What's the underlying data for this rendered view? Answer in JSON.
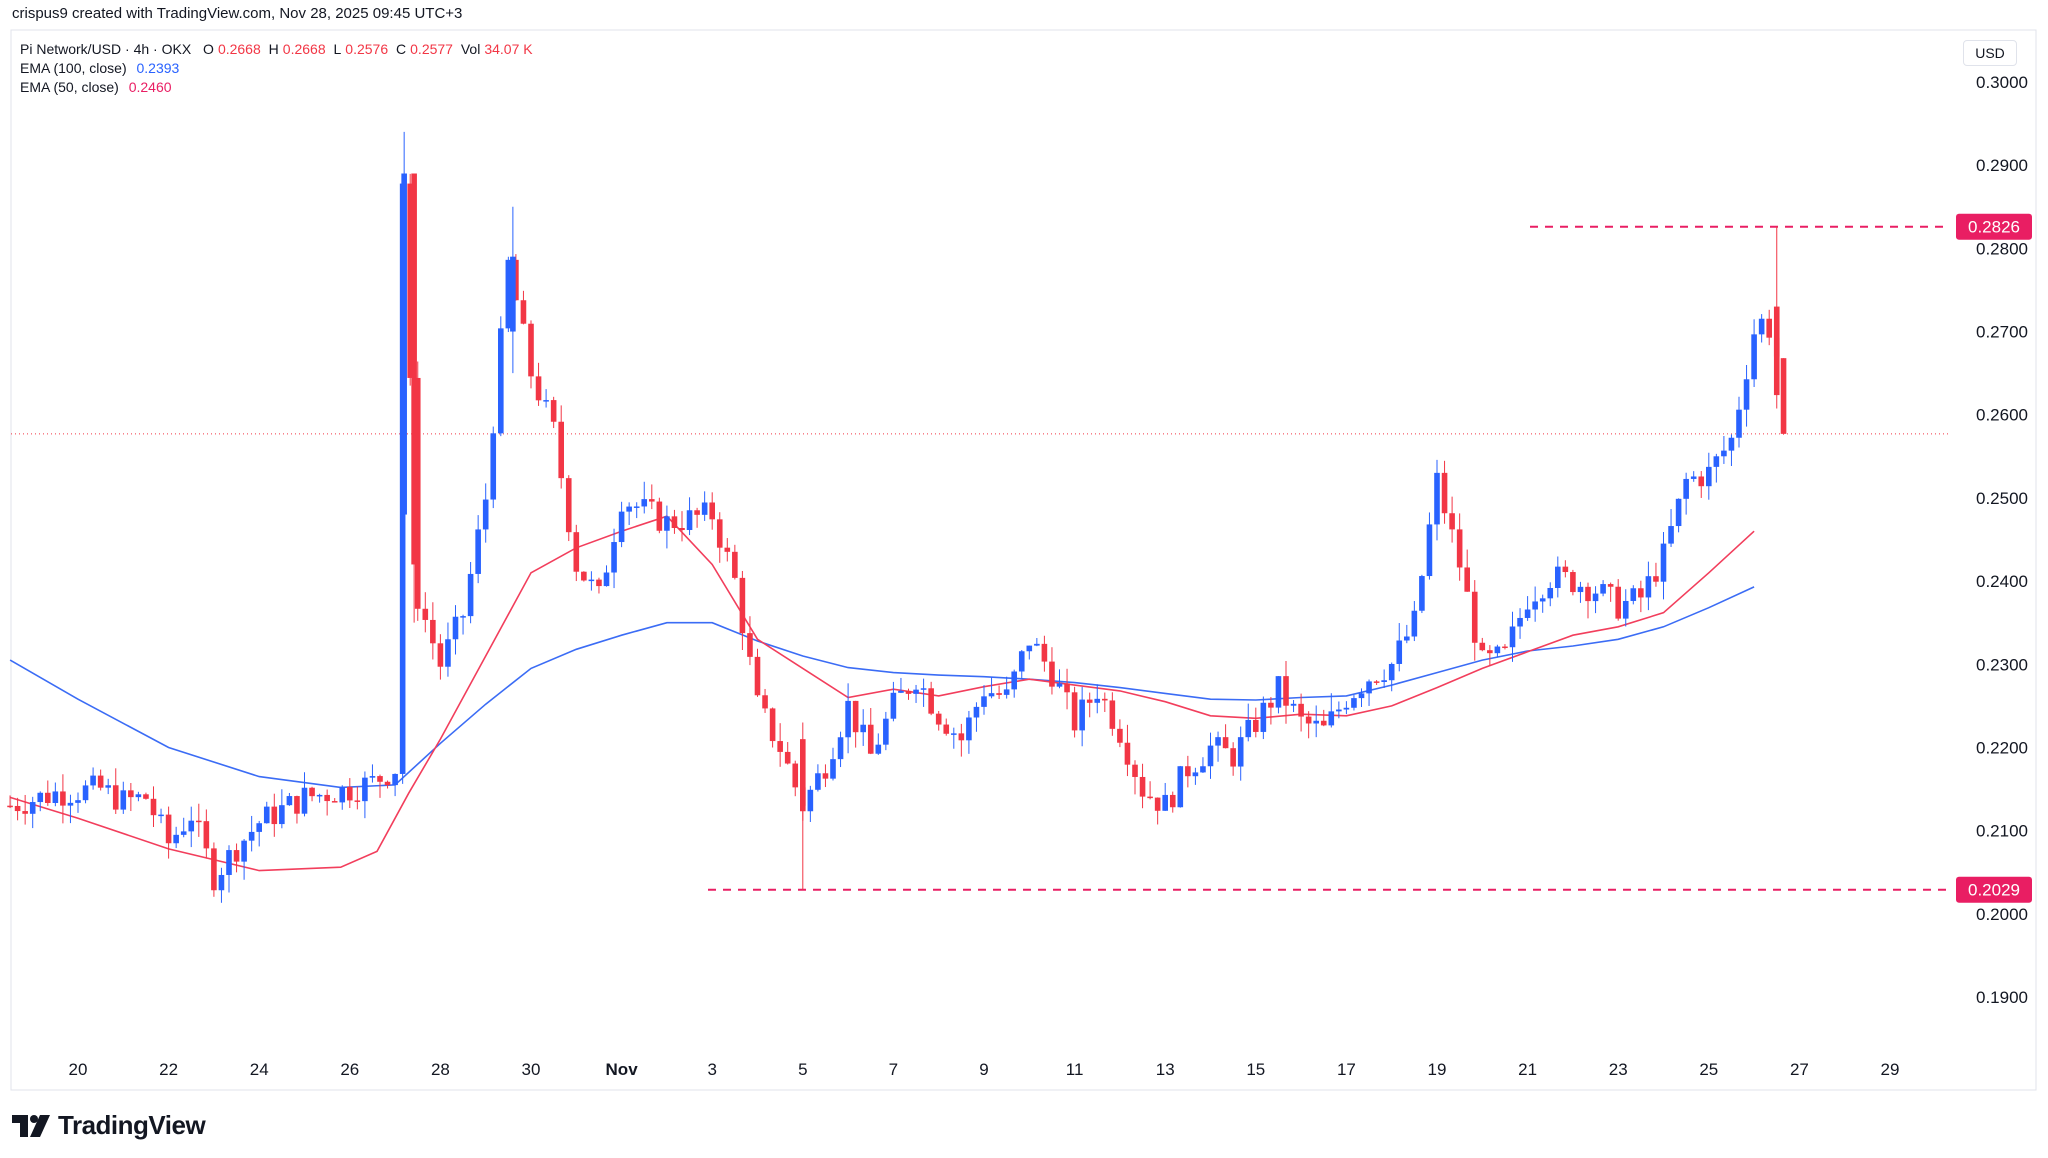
{
  "header": {
    "credit": "crispus9 created with TradingView.com, Nov 28, 2025 09:45 UTC+3"
  },
  "legend": {
    "symbol": "Pi Network/USD · 4h · OKX",
    "open_label": "O",
    "open": "0.2668",
    "high_label": "H",
    "high": "0.2668",
    "low_label": "L",
    "low": "0.2576",
    "close_label": "C",
    "close": "0.2577",
    "vol_label": "Vol",
    "vol": "34.07 K",
    "ema100_label": "EMA (100, close)",
    "ema100_value": "0.2393",
    "ema50_label": "EMA (50, close)",
    "ema50_value": "0.2460"
  },
  "price_axis": {
    "currency": "USD",
    "ticks": [
      "0.3000",
      "0.2900",
      "0.2800",
      "0.2700",
      "0.2600",
      "0.2500",
      "0.2400",
      "0.2300",
      "0.2200",
      "0.2100",
      "0.2000",
      "0.1900"
    ],
    "resistance_label": "0.2826",
    "support_label": "0.2029"
  },
  "time_axis": {
    "ticks": [
      "20",
      "22",
      "24",
      "26",
      "28",
      "30",
      "Nov",
      "3",
      "5",
      "7",
      "9",
      "11",
      "13",
      "15",
      "17",
      "19",
      "21",
      "23",
      "25",
      "27",
      "29"
    ]
  },
  "brand": {
    "name": "TradingView"
  },
  "colors": {
    "up": "#2962ff",
    "down": "#f23645",
    "ema50": "#f23e5c",
    "ema100": "#3b6cf5",
    "level": "#e91e63",
    "current_price": "#f23645"
  },
  "chart_data": {
    "type": "candlestick",
    "symbol": "Pi Network/USD",
    "timeframe": "4h",
    "ylim": [
      0.183,
      0.3085
    ],
    "x_range_days": [
      "Oct 18.5",
      "Nov 30.2"
    ],
    "levels": {
      "resistance": 0.2826,
      "support": 0.2029,
      "last_price": 0.2577
    },
    "ema50": [
      [
        18.5,
        0.214
      ],
      [
        20,
        0.2115
      ],
      [
        22,
        0.2078
      ],
      [
        24,
        0.2052
      ],
      [
        25.8,
        0.2056
      ],
      [
        26.6,
        0.2075
      ],
      [
        27.3,
        0.2145
      ],
      [
        28,
        0.221
      ],
      [
        29,
        0.231
      ],
      [
        30,
        0.241
      ],
      [
        31,
        0.244
      ],
      [
        32,
        0.246
      ],
      [
        33,
        0.2478
      ],
      [
        34,
        0.242
      ],
      [
        35,
        0.233
      ],
      [
        36,
        0.2295
      ],
      [
        37,
        0.226
      ],
      [
        38,
        0.227
      ],
      [
        39,
        0.2262
      ],
      [
        40,
        0.2273
      ],
      [
        41,
        0.2282
      ],
      [
        42,
        0.2275
      ],
      [
        43,
        0.2268
      ],
      [
        44,
        0.2255
      ],
      [
        45,
        0.2238
      ],
      [
        46,
        0.2235
      ],
      [
        47,
        0.224
      ],
      [
        48,
        0.2238
      ],
      [
        49,
        0.225
      ],
      [
        50,
        0.2272
      ],
      [
        51,
        0.2295
      ],
      [
        52,
        0.2315
      ],
      [
        53,
        0.2335
      ],
      [
        54,
        0.2345
      ],
      [
        55,
        0.2362
      ],
      [
        56,
        0.241
      ],
      [
        57,
        0.246
      ]
    ],
    "ema100": [
      [
        18.5,
        0.2305
      ],
      [
        20,
        0.2258
      ],
      [
        22,
        0.22
      ],
      [
        24,
        0.2165
      ],
      [
        25.8,
        0.2152
      ],
      [
        27,
        0.2155
      ],
      [
        28,
        0.2205
      ],
      [
        29,
        0.2252
      ],
      [
        30,
        0.2295
      ],
      [
        31,
        0.2318
      ],
      [
        32,
        0.2335
      ],
      [
        33,
        0.235
      ],
      [
        34,
        0.235
      ],
      [
        35,
        0.2328
      ],
      [
        36,
        0.231
      ],
      [
        37,
        0.2296
      ],
      [
        38,
        0.229
      ],
      [
        39,
        0.2287
      ],
      [
        40,
        0.2285
      ],
      [
        41,
        0.2282
      ],
      [
        42,
        0.2278
      ],
      [
        43,
        0.2272
      ],
      [
        44,
        0.2265
      ],
      [
        45,
        0.2258
      ],
      [
        46,
        0.2257
      ],
      [
        47,
        0.226
      ],
      [
        48,
        0.2262
      ],
      [
        49,
        0.2275
      ],
      [
        50,
        0.229
      ],
      [
        51,
        0.2305
      ],
      [
        52,
        0.2316
      ],
      [
        53,
        0.2322
      ],
      [
        54,
        0.233
      ],
      [
        55,
        0.2345
      ],
      [
        56,
        0.2368
      ],
      [
        57,
        0.2393
      ]
    ],
    "candles_anchor": [
      [
        18.5,
        0.213
      ],
      [
        19.5,
        0.2145
      ],
      [
        20.5,
        0.215
      ],
      [
        21,
        0.2135
      ],
      [
        21.5,
        0.214
      ],
      [
        22,
        0.2085
      ],
      [
        22.5,
        0.212
      ],
      [
        23,
        0.2045
      ],
      [
        23.5,
        0.208
      ],
      [
        24,
        0.211
      ],
      [
        25,
        0.214
      ],
      [
        26,
        0.215
      ],
      [
        26.5,
        0.2158
      ],
      [
        27,
        0.2175
      ],
      [
        27.16,
        0.289
      ],
      [
        27.5,
        0.238
      ],
      [
        28,
        0.23
      ],
      [
        28.5,
        0.236
      ],
      [
        29,
        0.25
      ],
      [
        29.5,
        0.278
      ],
      [
        30,
        0.265
      ],
      [
        30.5,
        0.258
      ],
      [
        31,
        0.242
      ],
      [
        31.5,
        0.238
      ],
      [
        32,
        0.25
      ],
      [
        33,
        0.247
      ],
      [
        34,
        0.248
      ],
      [
        34.5,
        0.24
      ],
      [
        35,
        0.225
      ],
      [
        35.5,
        0.22
      ],
      [
        36,
        0.213
      ],
      [
        36.5,
        0.218
      ],
      [
        37,
        0.225
      ],
      [
        37.5,
        0.219
      ],
      [
        38,
        0.225
      ],
      [
        38.5,
        0.2285
      ],
      [
        39,
        0.224
      ],
      [
        39.5,
        0.221
      ],
      [
        40,
        0.227
      ],
      [
        40.5,
        0.226
      ],
      [
        41,
        0.233
      ],
      [
        41.5,
        0.229
      ],
      [
        42,
        0.223
      ],
      [
        42.5,
        0.227
      ],
      [
        43,
        0.222
      ],
      [
        43.5,
        0.215
      ],
      [
        44,
        0.213
      ],
      [
        44.5,
        0.2175
      ],
      [
        45,
        0.22
      ],
      [
        45.5,
        0.219
      ],
      [
        46,
        0.223
      ],
      [
        46.5,
        0.227
      ],
      [
        47,
        0.223
      ],
      [
        47.5,
        0.222
      ],
      [
        48,
        0.226
      ],
      [
        48.5,
        0.2285
      ],
      [
        49,
        0.23
      ],
      [
        49.5,
        0.235
      ],
      [
        50,
        0.252
      ],
      [
        50.5,
        0.242
      ],
      [
        51,
        0.23
      ],
      [
        51.5,
        0.231
      ],
      [
        52,
        0.238
      ],
      [
        52.5,
        0.2405
      ],
      [
        53,
        0.24
      ],
      [
        53.5,
        0.239
      ],
      [
        54,
        0.237
      ],
      [
        54.5,
        0.238
      ],
      [
        55,
        0.243
      ],
      [
        55.5,
        0.252
      ],
      [
        56,
        0.253
      ],
      [
        56.5,
        0.257
      ],
      [
        57,
        0.27
      ],
      [
        57.3,
        0.272
      ],
      [
        57.6,
        0.2577
      ]
    ]
  }
}
